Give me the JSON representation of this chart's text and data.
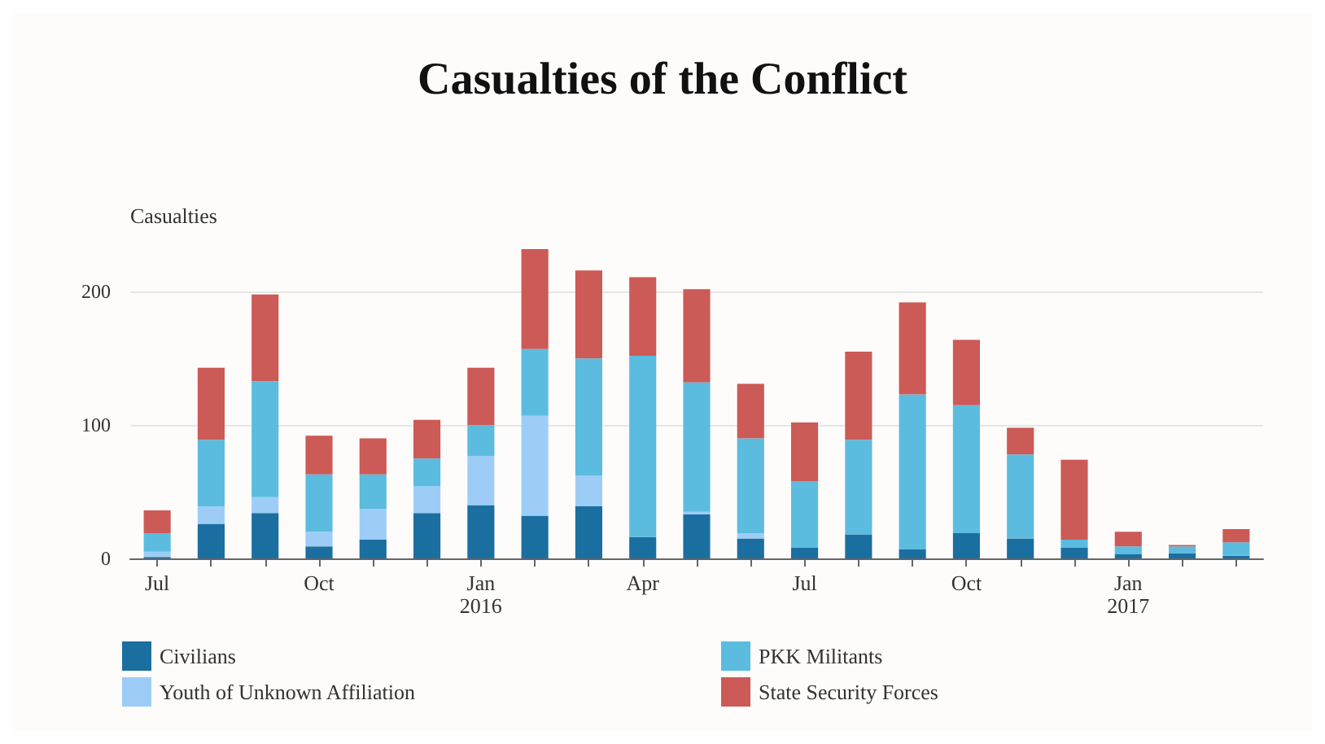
{
  "chart_data": {
    "type": "bar",
    "title": "Casualties of the Conflict",
    "ylabel": "Casualties",
    "categories": [
      "Jul",
      null,
      null,
      "Oct",
      null,
      null,
      "Jan\n2016",
      null,
      null,
      "Apr",
      null,
      null,
      "Jul",
      null,
      null,
      "Oct",
      null,
      null,
      "Jan\n2017",
      null,
      null
    ],
    "stacked": true,
    "series": [
      {
        "name": "Civilians",
        "color": "#1a6fa0",
        "values": [
          1,
          26,
          34,
          9,
          14,
          34,
          40,
          32,
          39,
          16,
          33,
          15,
          8,
          18,
          7,
          19,
          15,
          8,
          3,
          4,
          2
        ]
      },
      {
        "name": "Youth of Unknown Affiliation",
        "color": "#9dcdf7",
        "values": [
          4,
          13,
          12,
          11,
          23,
          20,
          37,
          75,
          23,
          0,
          2,
          4,
          0,
          0,
          0,
          0,
          0,
          0,
          0,
          0,
          0
        ]
      },
      {
        "name": "PKK Militants",
        "color": "#5bbcdf",
        "values": [
          14,
          50,
          87,
          43,
          26,
          21,
          23,
          50,
          88,
          136,
          97,
          71,
          50,
          71,
          116,
          96,
          63,
          6,
          6,
          5,
          10
        ]
      },
      {
        "name": "State Security Forces",
        "color": "#cc5a56",
        "values": [
          17,
          54,
          65,
          29,
          27,
          29,
          43,
          75,
          66,
          59,
          70,
          41,
          44,
          66,
          69,
          49,
          20,
          60,
          11,
          1,
          10
        ]
      }
    ],
    "ylim": [
      0,
      232
    ],
    "yticks": [
      0,
      100,
      200
    ],
    "grid": "y",
    "legend": "bottom"
  }
}
